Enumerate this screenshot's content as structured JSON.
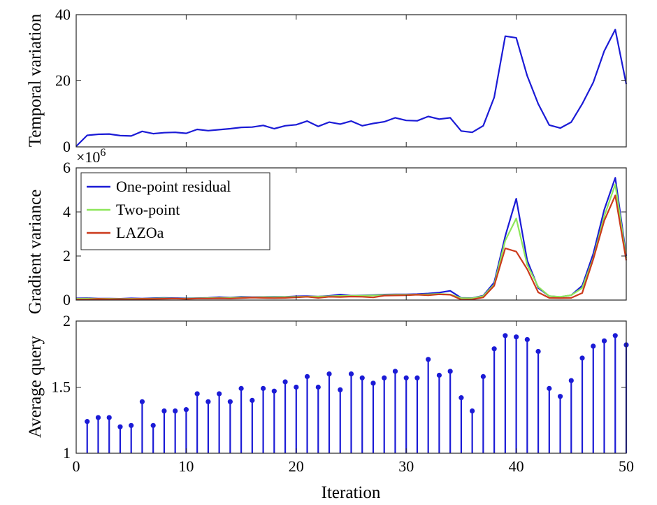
{
  "colors": {
    "one_point": "#1b1bd6",
    "two_point": "#8ee65a",
    "lazoa": "#cc3a1c",
    "stem": "#1b1bd6"
  },
  "chart_data": [
    {
      "type": "line",
      "ylabel": "Temporal variation",
      "xlabel": "",
      "xlim": [
        0,
        50
      ],
      "ylim": [
        0,
        40
      ],
      "yticks": [
        "0",
        "20",
        "40"
      ],
      "x": [
        0,
        1,
        2,
        3,
        4,
        5,
        6,
        7,
        8,
        9,
        10,
        11,
        12,
        13,
        14,
        15,
        16,
        17,
        18,
        19,
        20,
        21,
        22,
        23,
        24,
        25,
        26,
        27,
        28,
        29,
        30,
        31,
        32,
        33,
        34,
        35,
        36,
        37,
        38,
        39,
        40,
        41,
        42,
        43,
        44,
        45,
        46,
        47,
        48,
        49,
        50
      ],
      "series": [
        {
          "values": [
            0.2,
            3.5,
            3.8,
            3.9,
            3.4,
            3.3,
            4.7,
            4.0,
            4.3,
            4.4,
            4.1,
            5.3,
            4.9,
            5.2,
            5.5,
            5.9,
            6.0,
            6.5,
            5.5,
            6.4,
            6.7,
            7.8,
            6.2,
            7.5,
            6.9,
            7.8,
            6.4,
            7.1,
            7.6,
            8.8,
            8.0,
            7.9,
            9.2,
            8.4,
            8.8,
            4.8,
            4.4,
            6.4,
            15.0,
            33.5,
            33.0,
            21.5,
            13.0,
            6.6,
            5.7,
            7.5,
            13.0,
            19.5,
            29.0,
            35.5,
            19.0
          ]
        }
      ]
    },
    {
      "type": "line",
      "ylabel": "Gradient variance",
      "xlabel": "",
      "exponent_label": "×10",
      "exponent_power": "6",
      "xlim": [
        0,
        50
      ],
      "ylim": [
        0,
        6
      ],
      "yticks": [
        "0",
        "2",
        "4",
        "6"
      ],
      "legend_position": "top-left",
      "x": [
        0,
        1,
        2,
        3,
        4,
        5,
        6,
        7,
        8,
        9,
        10,
        11,
        12,
        13,
        14,
        15,
        16,
        17,
        18,
        19,
        20,
        21,
        22,
        23,
        24,
        25,
        26,
        27,
        28,
        29,
        30,
        31,
        32,
        33,
        34,
        35,
        36,
        37,
        38,
        39,
        40,
        41,
        42,
        43,
        44,
        45,
        46,
        47,
        48,
        49,
        50
      ],
      "series": [
        {
          "name": "One-point residual",
          "color_key": "one_point",
          "values": [
            0.08,
            0.09,
            0.07,
            0.07,
            0.06,
            0.08,
            0.07,
            0.09,
            0.1,
            0.09,
            0.08,
            0.09,
            0.1,
            0.13,
            0.11,
            0.15,
            0.13,
            0.14,
            0.15,
            0.15,
            0.17,
            0.18,
            0.16,
            0.19,
            0.25,
            0.2,
            0.21,
            0.23,
            0.25,
            0.26,
            0.26,
            0.27,
            0.3,
            0.34,
            0.42,
            0.1,
            0.09,
            0.2,
            0.8,
            2.9,
            4.6,
            1.8,
            0.55,
            0.18,
            0.14,
            0.22,
            0.65,
            2.1,
            4.1,
            5.55,
            2.0
          ]
        },
        {
          "name": "Two-point",
          "color_key": "two_point",
          "values": [
            0.06,
            0.07,
            0.06,
            0.06,
            0.05,
            0.06,
            0.06,
            0.07,
            0.08,
            0.07,
            0.07,
            0.08,
            0.09,
            0.1,
            0.1,
            0.12,
            0.12,
            0.13,
            0.13,
            0.14,
            0.15,
            0.16,
            0.16,
            0.17,
            0.19,
            0.19,
            0.2,
            0.21,
            0.23,
            0.24,
            0.24,
            0.25,
            0.26,
            0.28,
            0.25,
            0.09,
            0.08,
            0.18,
            0.7,
            2.7,
            3.7,
            1.6,
            0.6,
            0.18,
            0.15,
            0.22,
            0.55,
            1.9,
            3.8,
            5.25,
            1.9
          ]
        },
        {
          "name": "LAZOa",
          "color_key": "lazoa",
          "values": [
            0.03,
            0.03,
            0.05,
            0.04,
            0.04,
            0.04,
            0.05,
            0.05,
            0.06,
            0.07,
            0.05,
            0.07,
            0.07,
            0.08,
            0.07,
            0.09,
            0.11,
            0.1,
            0.09,
            0.1,
            0.12,
            0.15,
            0.1,
            0.15,
            0.14,
            0.16,
            0.15,
            0.12,
            0.2,
            0.21,
            0.22,
            0.24,
            0.22,
            0.26,
            0.24,
            0.02,
            0.03,
            0.12,
            0.65,
            2.35,
            2.2,
            1.4,
            0.35,
            0.1,
            0.09,
            0.1,
            0.32,
            1.85,
            3.6,
            4.75,
            1.8
          ]
        }
      ]
    },
    {
      "type": "stem",
      "ylabel": "Average query",
      "xlabel": "Iteration",
      "xlim": [
        0,
        50
      ],
      "ylim": [
        1,
        2
      ],
      "yticks": [
        "1",
        "1.5",
        "2"
      ],
      "xticks": [
        "0",
        "10",
        "20",
        "30",
        "40",
        "50"
      ],
      "x": [
        1,
        2,
        3,
        4,
        5,
        6,
        7,
        8,
        9,
        10,
        11,
        12,
        13,
        14,
        15,
        16,
        17,
        18,
        19,
        20,
        21,
        22,
        23,
        24,
        25,
        26,
        27,
        28,
        29,
        30,
        31,
        32,
        33,
        34,
        35,
        36,
        37,
        38,
        39,
        40,
        41,
        42,
        43,
        44,
        45,
        46,
        47,
        48,
        49,
        50
      ],
      "values": [
        1.24,
        1.27,
        1.27,
        1.2,
        1.21,
        1.39,
        1.21,
        1.32,
        1.32,
        1.33,
        1.45,
        1.39,
        1.45,
        1.39,
        1.49,
        1.4,
        1.49,
        1.47,
        1.54,
        1.5,
        1.58,
        1.5,
        1.6,
        1.48,
        1.6,
        1.57,
        1.53,
        1.57,
        1.62,
        1.57,
        1.57,
        1.71,
        1.59,
        1.62,
        1.42,
        1.32,
        1.58,
        1.79,
        1.89,
        1.88,
        1.86,
        1.77,
        1.49,
        1.43,
        1.55,
        1.72,
        1.81,
        1.85,
        1.89,
        1.82
      ]
    }
  ]
}
